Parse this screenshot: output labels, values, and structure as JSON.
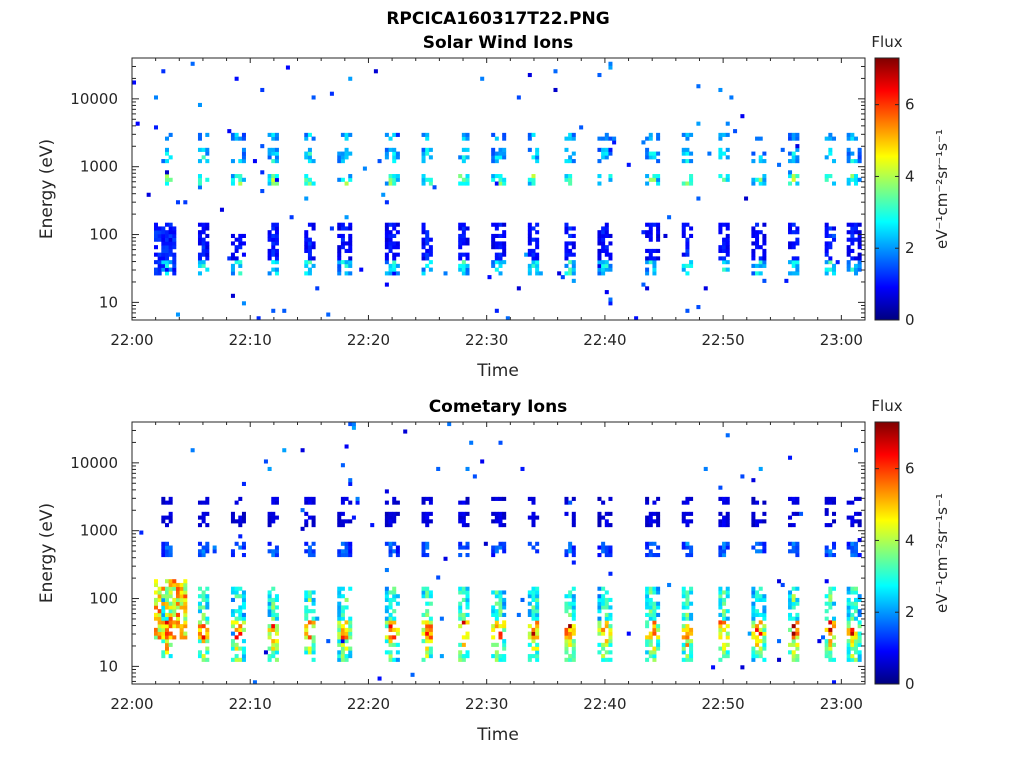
{
  "figure": {
    "title": "RPCICA160317T22.PNG"
  },
  "colors": {
    "axis": "#262626",
    "background": "#ffffff",
    "colormap": [
      "#00007f",
      "#0000ff",
      "#007fff",
      "#00ffff",
      "#7fff7f",
      "#ffff00",
      "#ff7f00",
      "#ff0000",
      "#7f0000"
    ]
  },
  "chart_data": [
    {
      "type": "heatmap",
      "title": "Solar Wind Ions",
      "xlabel": "Time",
      "ylabel": "Energy (eV)",
      "y_scale": "log",
      "x_range": [
        "22:00",
        "23:02"
      ],
      "y_range": [
        5.5,
        40000
      ],
      "x_ticks": [
        "22:00",
        "22:10",
        "22:20",
        "22:30",
        "22:40",
        "22:50",
        "23:00"
      ],
      "y_ticks": [
        "10",
        "100",
        "1000",
        "10000"
      ],
      "y_tick_values": [
        10,
        100,
        1000,
        10000
      ],
      "colorbar": {
        "label": "Flux",
        "unit": "eV⁻¹cm⁻²sr⁻¹s⁻¹",
        "range": [
          0,
          7.3
        ],
        "ticks": [
          "0",
          "2",
          "4",
          "6"
        ],
        "tick_values": [
          0,
          2,
          4,
          6
        ]
      },
      "pulse_period_min": 3.2,
      "pulse_times": [
        "22:03",
        "22:06",
        "22:09",
        "22:12",
        "22:15",
        "22:18",
        "22:22",
        "22:25",
        "22:28",
        "22:31",
        "22:34",
        "22:37",
        "22:40",
        "22:44",
        "22:47",
        "22:50",
        "22:53",
        "22:56",
        "22:59",
        "23:01"
      ],
      "features": [
        {
          "energy_min": 500,
          "energy_max": 800,
          "flux": 3.8
        },
        {
          "energy_min": 1200,
          "energy_max": 1800,
          "flux": 2.8
        },
        {
          "energy_min": 2500,
          "energy_max": 3200,
          "flux": 2.5
        },
        {
          "energy_min": 25,
          "energy_max": 40,
          "flux": 3.0
        },
        {
          "energy_min": 40,
          "energy_max": 150,
          "flux": 1.2
        }
      ],
      "burst": {
        "time_start": "22:02",
        "time_end": "22:03",
        "energy_min": 25,
        "energy_max": 150,
        "flux": 1.2
      }
    },
    {
      "type": "heatmap",
      "title": "Cometary Ions",
      "xlabel": "Time",
      "ylabel": "Energy (eV)",
      "y_scale": "log",
      "x_range": [
        "22:00",
        "23:02"
      ],
      "y_range": [
        5.5,
        40000
      ],
      "x_ticks": [
        "22:00",
        "22:10",
        "22:20",
        "22:30",
        "22:40",
        "22:50",
        "23:00"
      ],
      "y_ticks": [
        "10",
        "100",
        "1000",
        "10000"
      ],
      "y_tick_values": [
        10,
        100,
        1000,
        10000
      ],
      "colorbar": {
        "label": "Flux",
        "unit": "eV⁻¹cm⁻²sr⁻¹s⁻¹",
        "range": [
          0,
          7.3
        ],
        "ticks": [
          "0",
          "2",
          "4",
          "6"
        ],
        "tick_values": [
          0,
          2,
          4,
          6
        ]
      },
      "pulse_period_min": 3.2,
      "pulse_times": [
        "22:03",
        "22:06",
        "22:09",
        "22:12",
        "22:15",
        "22:18",
        "22:22",
        "22:25",
        "22:28",
        "22:31",
        "22:34",
        "22:37",
        "22:40",
        "22:44",
        "22:47",
        "22:50",
        "22:53",
        "22:56",
        "22:59",
        "23:01"
      ],
      "features": [
        {
          "energy_min": 25,
          "energy_max": 45,
          "flux": 6.2
        },
        {
          "energy_min": 18,
          "energy_max": 25,
          "flux": 4.8
        },
        {
          "energy_min": 12,
          "energy_max": 18,
          "flux": 4.0
        },
        {
          "energy_min": 50,
          "energy_max": 150,
          "flux": 3.6
        },
        {
          "energy_min": 400,
          "energy_max": 700,
          "flux": 1.8
        },
        {
          "energy_min": 1200,
          "energy_max": 1800,
          "flux": 0.8
        },
        {
          "energy_min": 2500,
          "energy_max": 3200,
          "flux": 0.8
        }
      ],
      "burst": {
        "time_start": "22:02",
        "time_end": "22:04",
        "energy_min": 25,
        "energy_max": 200,
        "flux": 5.0
      }
    }
  ]
}
